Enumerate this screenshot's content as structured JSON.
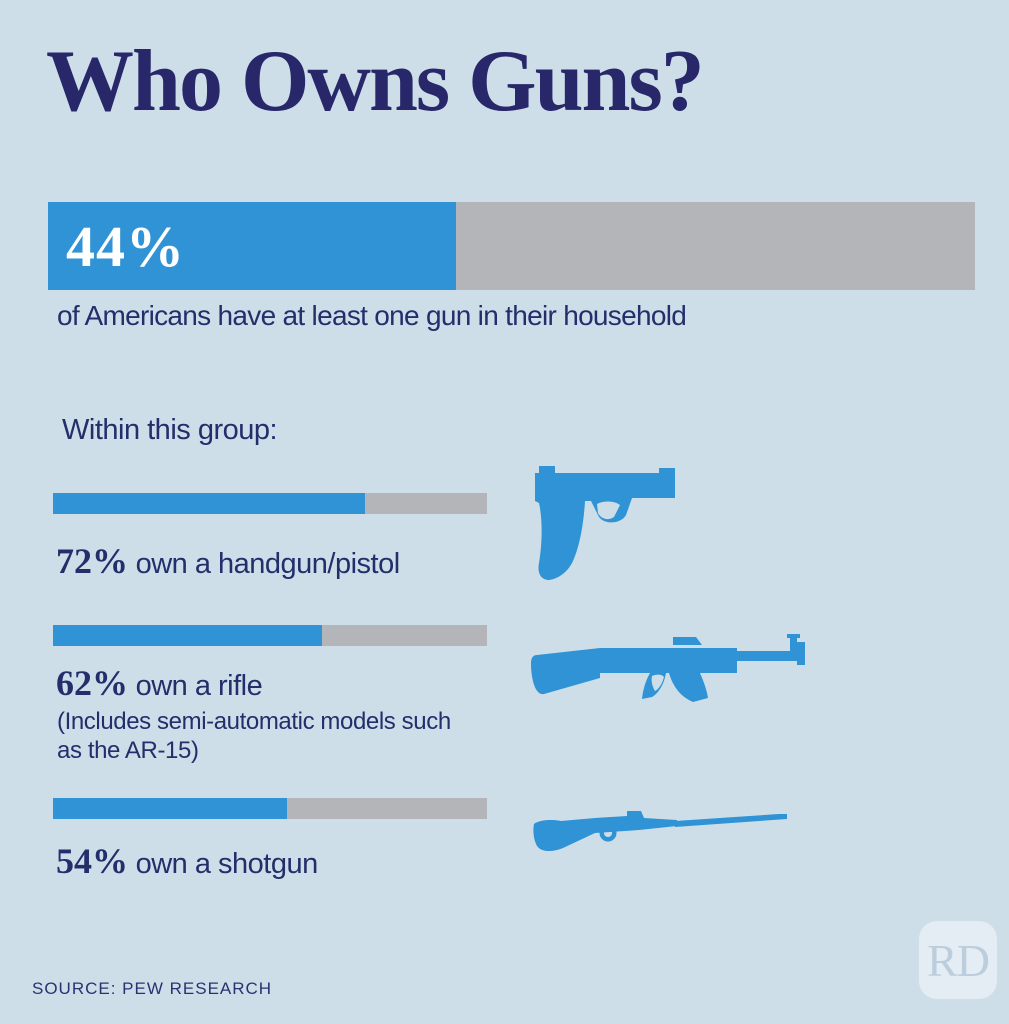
{
  "title": "Who Owns Guns?",
  "chart_data": {
    "type": "bar",
    "title": "Who Owns Guns?",
    "main_stat": {
      "value": 44,
      "display": "44%",
      "description": "of Americans have at least one gun in their household"
    },
    "group_label": "Within this group:",
    "categories": [
      "own a handgun/pistol",
      "own a rifle",
      "own a shotgun"
    ],
    "values": [
      72,
      62,
      54
    ],
    "items": [
      {
        "display": "72%",
        "value": 72,
        "label": "own a handgun/pistol",
        "icon": "handgun-icon"
      },
      {
        "display": "62%",
        "value": 62,
        "label": "own a rifle",
        "icon": "rifle-icon",
        "note": "(Includes semi-automatic models such as the AR-15)"
      },
      {
        "display": "54%",
        "value": 54,
        "label": "own a shotgun",
        "icon": "shotgun-icon"
      }
    ],
    "xlim": [
      0,
      100
    ],
    "bar_fill_color": "#2f93d5",
    "bar_track_color": "#b3b5b8",
    "legend": "none",
    "grid": false
  },
  "source": "SOURCE: PEW RESEARCH",
  "logo_text": "RD",
  "colors": {
    "background": "#cddee9",
    "accent_blue": "#2f93d5",
    "track_gray": "#b3b5b8",
    "navy_text": "#232e6b",
    "title_navy": "#272769",
    "stat_text_white": "#ffffff",
    "logo_tint": "#bccedd"
  }
}
